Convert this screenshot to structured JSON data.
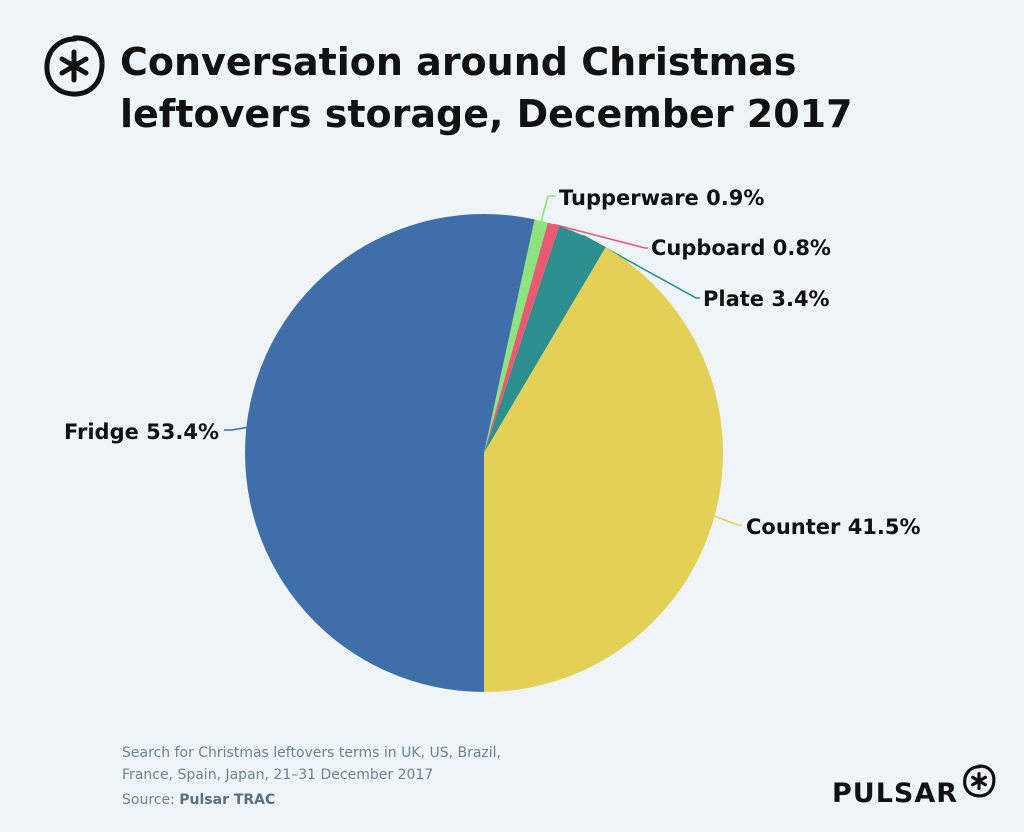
{
  "header": {
    "title": "Conversation around Christmas leftovers storage, December 2017"
  },
  "chart_data": {
    "type": "pie",
    "title": "Conversation around Christmas leftovers storage, December 2017",
    "slices": [
      {
        "label": "Fridge",
        "value": 53.4,
        "display": "Fridge 53.4%",
        "color": "#3e6fa9"
      },
      {
        "label": "Tupperware",
        "value": 0.9,
        "display": "Tupperware 0.9%",
        "color": "#8fe37e"
      },
      {
        "label": "Cupboard",
        "value": 0.8,
        "display": "Cupboard 0.8%",
        "color": "#eb5a72"
      },
      {
        "label": "Plate",
        "value": 3.4,
        "display": "Plate 3.4%",
        "color": "#2e8f8f"
      },
      {
        "label": "Counter",
        "value": 41.5,
        "display": "Counter 41.5%",
        "color": "#e3d157"
      }
    ]
  },
  "footer": {
    "note_line1": "Search for Christmas leftovers terms in UK, US, Brazil,",
    "note_line2": "France, Spain, Japan, 21–31 December 2017",
    "source_prefix": "Source:",
    "source_name": "Pulsar TRAC",
    "brand": "PULSAR"
  },
  "icons": [
    "pulsar-logo-icon",
    "pulsar-brand-icon"
  ]
}
